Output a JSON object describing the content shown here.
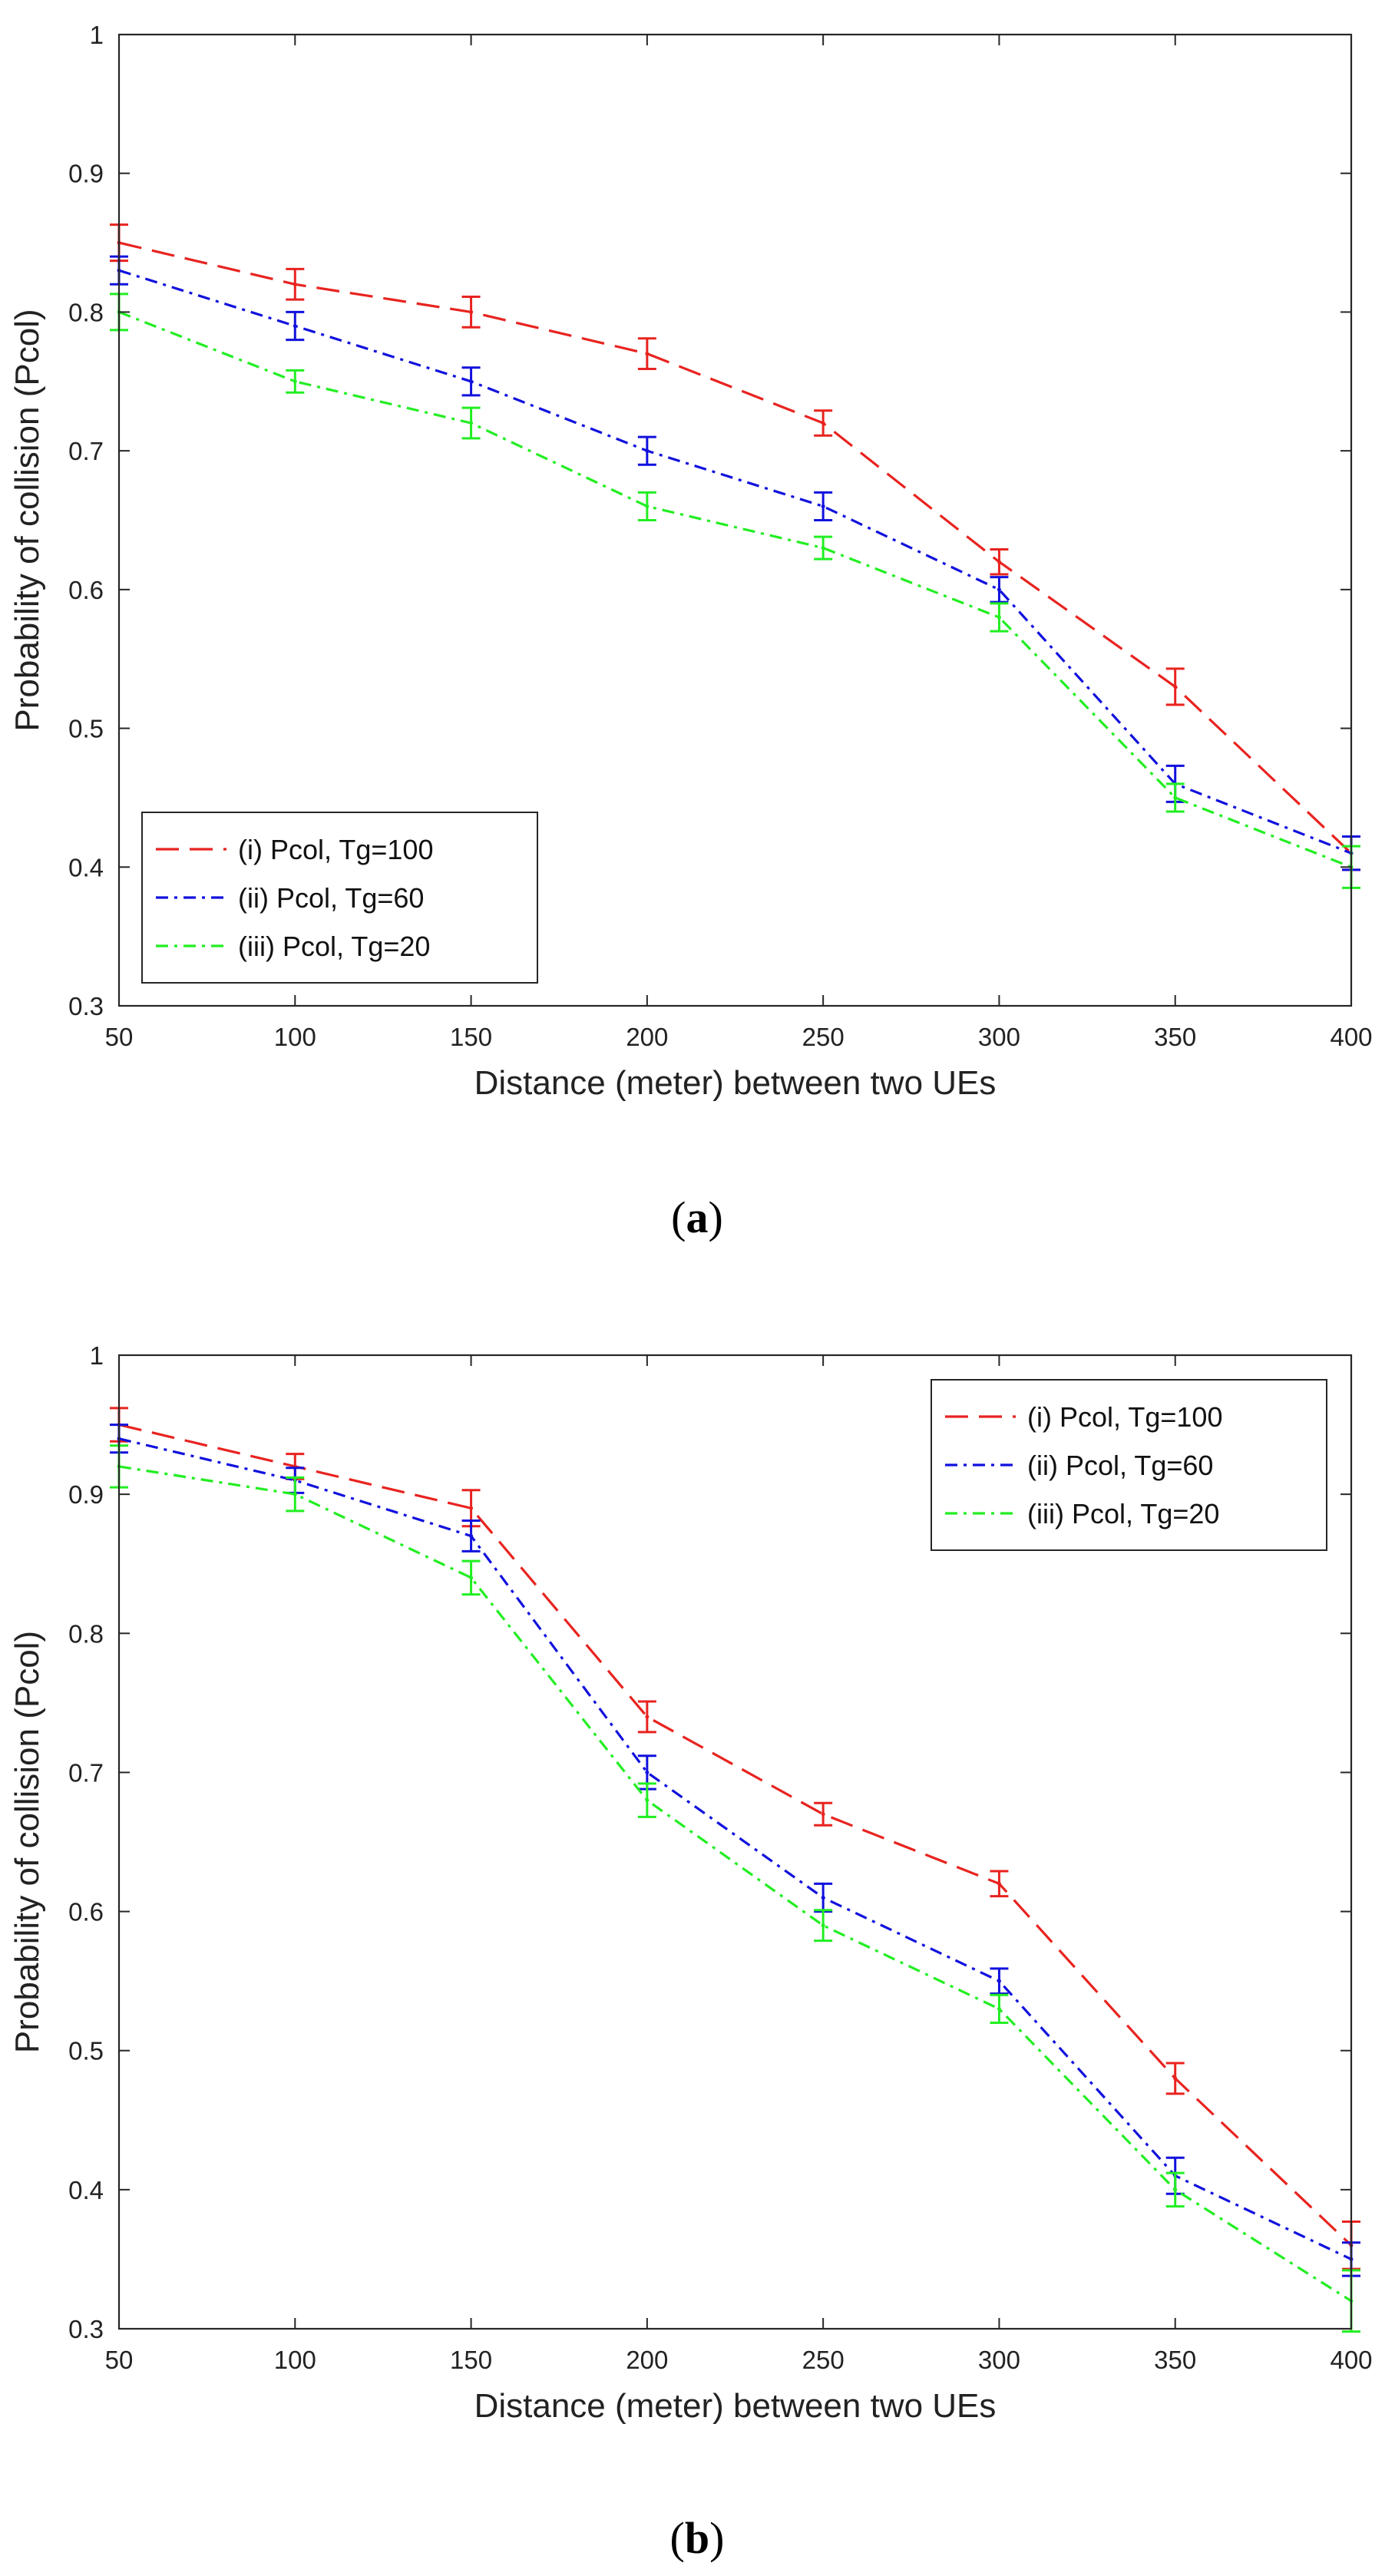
{
  "colors": {
    "series_i": "#e8231f",
    "series_ii": "#1111dd",
    "series_iii": "#22ee22",
    "axis": "#262626",
    "background": "#ffffff"
  },
  "chart_data": [
    {
      "type": "line",
      "panel_label": "a",
      "title": "",
      "xlabel": "Distance (meter) between two UEs",
      "ylabel": "Probability of collision (Pcol)",
      "xlim": [
        50,
        400
      ],
      "ylim": [
        0.3,
        1
      ],
      "x": [
        50,
        100,
        150,
        200,
        250,
        300,
        350,
        400
      ],
      "xticks": [
        "50",
        "100",
        "150",
        "200",
        "250",
        "300",
        "350",
        "400"
      ],
      "yticks": [
        "0.3",
        "0.4",
        "0.5",
        "0.6",
        "0.7",
        "0.8",
        "0.9",
        "1"
      ],
      "grid": false,
      "legend_position": "bottom-left",
      "series": [
        {
          "name": "(i) Pcol, Tg=100",
          "style": "dashed",
          "values": [
            0.85,
            0.82,
            0.8,
            0.77,
            0.72,
            0.62,
            0.53,
            0.41
          ],
          "errors": [
            0.013,
            0.011,
            0.011,
            0.011,
            0.009,
            0.009,
            0.013,
            0.012
          ]
        },
        {
          "name": "(ii) Pcol, Tg=60",
          "style": "dashdot",
          "values": [
            0.83,
            0.79,
            0.75,
            0.7,
            0.66,
            0.6,
            0.46,
            0.41
          ],
          "errors": [
            0.01,
            0.01,
            0.01,
            0.01,
            0.01,
            0.009,
            0.013,
            0.012
          ]
        },
        {
          "name": "(iii) Pcol, Tg=20",
          "style": "dashdot",
          "values": [
            0.8,
            0.75,
            0.72,
            0.66,
            0.63,
            0.58,
            0.45,
            0.4
          ],
          "errors": [
            0.013,
            0.008,
            0.011,
            0.01,
            0.008,
            0.01,
            0.01,
            0.015
          ]
        }
      ]
    },
    {
      "type": "line",
      "panel_label": "b",
      "title": "",
      "xlabel": "Distance (meter) between two UEs",
      "ylabel": "Probability of collision (Pcol)",
      "xlim": [
        50,
        400
      ],
      "ylim": [
        0.3,
        1
      ],
      "x": [
        50,
        100,
        150,
        200,
        250,
        300,
        350,
        400
      ],
      "xticks": [
        "50",
        "100",
        "150",
        "200",
        "250",
        "300",
        "350",
        "400"
      ],
      "yticks": [
        "0.3",
        "0.4",
        "0.5",
        "0.6",
        "0.7",
        "0.8",
        "0.9",
        "1"
      ],
      "grid": false,
      "legend_position": "top-right",
      "series": [
        {
          "name": "(i) Pcol, Tg=100",
          "style": "dashed",
          "values": [
            0.95,
            0.92,
            0.89,
            0.74,
            0.67,
            0.62,
            0.48,
            0.36
          ],
          "errors": [
            0.012,
            0.009,
            0.013,
            0.011,
            0.008,
            0.009,
            0.011,
            0.017
          ]
        },
        {
          "name": "(ii) Pcol, Tg=60",
          "style": "dashdot",
          "values": [
            0.94,
            0.91,
            0.87,
            0.7,
            0.61,
            0.55,
            0.41,
            0.35
          ],
          "errors": [
            0.01,
            0.009,
            0.011,
            0.012,
            0.01,
            0.009,
            0.013,
            0.012
          ]
        },
        {
          "name": "(iii) Pcol, Tg=20",
          "style": "dashdot",
          "values": [
            0.92,
            0.9,
            0.84,
            0.68,
            0.59,
            0.53,
            0.4,
            0.32
          ],
          "errors": [
            0.015,
            0.012,
            0.012,
            0.012,
            0.011,
            0.01,
            0.012,
            0.022
          ]
        }
      ]
    }
  ]
}
